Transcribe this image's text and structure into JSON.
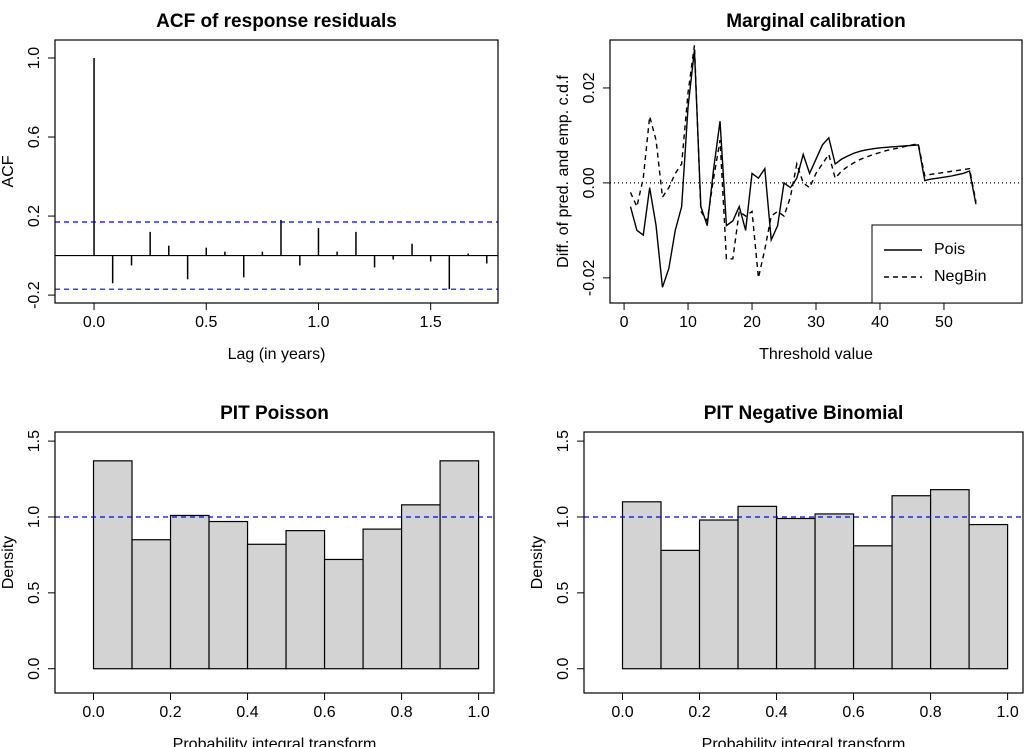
{
  "chart_data": [
    {
      "type": "stem",
      "title": "ACF of response residuals",
      "x_label": "Lag (in years)",
      "y_label": "ACF",
      "x": [
        0,
        0.083,
        0.167,
        0.25,
        0.333,
        0.417,
        0.5,
        0.583,
        0.667,
        0.75,
        0.833,
        0.917,
        1,
        1.083,
        1.167,
        1.25,
        1.333,
        1.417,
        1.5,
        1.583,
        1.667,
        1.75
      ],
      "values": [
        1.0,
        -0.14,
        -0.05,
        0.12,
        0.05,
        -0.12,
        0.04,
        0.02,
        -0.11,
        0.02,
        0.18,
        -0.05,
        0.14,
        0.02,
        0.12,
        -0.06,
        -0.02,
        0.06,
        -0.03,
        -0.17,
        0.01,
        -0.04
      ],
      "color": "#000000",
      "hlines": [
        {
          "value": 0,
          "color": "#000000",
          "style": "solid"
        },
        {
          "value": 0.17,
          "color": "#0000ff",
          "style": "dashed"
        },
        {
          "value": -0.17,
          "color": "#0000ff",
          "style": "dashed"
        }
      ],
      "xlim": [
        -0.174,
        1.8
      ],
      "xticks": [
        {
          "value": 0,
          "label": "0.0"
        },
        0.5,
        {
          "value": 1,
          "label": "1.0"
        },
        1.5
      ],
      "ylim": [
        -0.24,
        1.091
      ],
      "yticks": [
        -0.2,
        0.2,
        0.6,
        {
          "value": 1,
          "label": "1.0"
        }
      ]
    },
    {
      "type": "line",
      "title": "Marginal calibration",
      "x_label": "Threshold value",
      "y_label": "Diff. of pred. and emp. c.d.f",
      "x": [
        1,
        2,
        3,
        4,
        5,
        6,
        7,
        8,
        9,
        10,
        11,
        12,
        13,
        14,
        15,
        16,
        17,
        18,
        19,
        20,
        21,
        22,
        23,
        24,
        25,
        26,
        27,
        28,
        29,
        30,
        31,
        32,
        33,
        34,
        35,
        36,
        37,
        38,
        39,
        40,
        41,
        42,
        43,
        44,
        45,
        46,
        47,
        48,
        49,
        50,
        51,
        52,
        53,
        54,
        55
      ],
      "series": [
        {
          "name": "Pois",
          "color": "#000000",
          "style": "solid",
          "values": [
            -0.005,
            -0.01,
            -0.011,
            -0.001,
            -0.009,
            -0.022,
            -0.018,
            -0.01,
            -0.005,
            0.016,
            0.028,
            -0.005,
            -0.009,
            0.003,
            0.013,
            -0.009,
            -0.008,
            -0.005,
            -0.01,
            0.002,
            0.001,
            0.003,
            -0.012,
            -0.009,
            0,
            -0.001,
            0.001,
            0.006,
            0.002,
            0.005,
            0.008,
            0.0095,
            0.004,
            0.005,
            0.0057,
            0.0063,
            0.0067,
            0.007,
            0.0072,
            0.0074,
            0.0075,
            0.0076,
            0.0077,
            0.0078,
            0.0079,
            0.008,
            0.0005,
            0.0008,
            0.001,
            0.0012,
            0.0014,
            0.0017,
            0.002,
            0.0025,
            -0.0045
          ]
        },
        {
          "name": "NegBin",
          "color": "#000000",
          "style": "dashed",
          "values": [
            -0.002,
            -0.005,
            0.001,
            0.014,
            0.009,
            -0.003,
            -0.001,
            0.002,
            0.004,
            0.019,
            0.029,
            -0.006,
            -0.008,
            0.001,
            0.009,
            -0.016,
            -0.016,
            -0.006,
            -0.007,
            -0.006,
            -0.02,
            -0.014,
            -0.007,
            -0.006,
            -0.007,
            -0.003,
            0.004,
            0,
            -0.001,
            0.002,
            0.004,
            0.006,
            0.001,
            0.0025,
            0.0035,
            0.0043,
            0.005,
            0.0055,
            0.006,
            0.0064,
            0.0068,
            0.0071,
            0.0074,
            0.0077,
            0.008,
            0.0082,
            0.0015,
            0.0018,
            0.002,
            0.0022,
            0.0024,
            0.0026,
            0.0028,
            0.003,
            -0.004
          ]
        }
      ],
      "hlines": [
        {
          "value": 0,
          "color": "#000000",
          "style": "dotted"
        }
      ],
      "legend": "bottom-right",
      "xlim": [
        -2.2,
        62.2
      ],
      "xticks": [
        0,
        10,
        20,
        30,
        40,
        50
      ],
      "ylim": [
        -0.0253,
        0.0301
      ],
      "yticks": [
        -0.02,
        {
          "value": 0,
          "label": "0.00"
        },
        0.02
      ]
    },
    {
      "type": "histogram",
      "title": "PIT Poisson",
      "x_label": "Probability integral transform",
      "y_label": "Density",
      "bins": [
        0,
        0.1,
        0.2,
        0.3,
        0.4,
        0.5,
        0.6,
        0.7,
        0.8,
        0.9,
        1
      ],
      "values": [
        1.37,
        0.85,
        1.01,
        0.97,
        0.82,
        0.91,
        0.72,
        0.92,
        1.08,
        1.37
      ],
      "color": "#d3d3d3",
      "hlines": [
        {
          "value": 1,
          "color": "#0000ff",
          "style": "dashed"
        }
      ],
      "xlim": [
        -0.1,
        1.04
      ],
      "xticks": [
        {
          "value": 0,
          "label": "0.0"
        },
        0.2,
        0.4,
        0.6,
        0.8,
        {
          "value": 1,
          "label": "1.0"
        }
      ],
      "ylim": [
        -0.16,
        1.56
      ],
      "yticks": [
        {
          "value": 0,
          "label": "0.0"
        },
        0.5,
        {
          "value": 1,
          "label": "1.0"
        },
        1.5
      ]
    },
    {
      "type": "histogram",
      "title": "PIT Negative Binomial",
      "x_label": "Probability integral transform",
      "y_label": "Density",
      "bins": [
        0,
        0.1,
        0.2,
        0.3,
        0.4,
        0.5,
        0.6,
        0.7,
        0.8,
        0.9,
        1
      ],
      "values": [
        1.1,
        0.78,
        0.98,
        1.07,
        0.99,
        1.02,
        0.81,
        1.14,
        1.18,
        0.95
      ],
      "color": "#d3d3d3",
      "hlines": [
        {
          "value": 1,
          "color": "#0000ff",
          "style": "dashed"
        }
      ],
      "xlim": [
        -0.1,
        1.04
      ],
      "xticks": [
        {
          "value": 0,
          "label": "0.0"
        },
        0.2,
        0.4,
        0.6,
        0.8,
        {
          "value": 1,
          "label": "1.0"
        }
      ],
      "ylim": [
        -0.16,
        1.56
      ],
      "yticks": [
        {
          "value": 0,
          "label": "0.0"
        },
        0.5,
        {
          "value": 1,
          "label": "1.0"
        },
        1.5
      ]
    }
  ]
}
